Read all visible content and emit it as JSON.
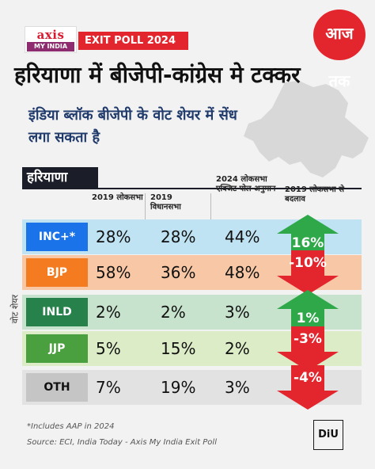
{
  "brand": {
    "axis_line1": "axis",
    "axis_line2": "MY INDIA",
    "exit_tag": "EXIT POLL 2024",
    "channel_logo": "आज तक",
    "footer_logo": "DiU"
  },
  "headline": "हरियाणा में बीजेपी-कांग्रेस मे टक्कर",
  "subheadline": "इंडिया ब्लॉक बीजेपी के वोट शेयर में सेंध लगा सकता है",
  "chart_data": {
    "type": "table",
    "title": "हरियाणा",
    "row_axis_label": "वोट शेयर",
    "columns": [
      "2019 लोकसभा",
      "2019 विधानसभा",
      "2024 लोकसभा एक्जिट पोल अनुमान",
      "2019 लोकसभा से बदलाव"
    ],
    "rows": [
      {
        "party": "INC+*",
        "color": "#1a73e8",
        "bg": "#bfe3f2",
        "ls2019": "28%",
        "vs2019": "28%",
        "exit2024": "44%",
        "change": "16%",
        "change_value": 16
      },
      {
        "party": "BJP",
        "color": "#f47b20",
        "bg": "#f8c8a6",
        "ls2019": "58%",
        "vs2019": "36%",
        "exit2024": "48%",
        "change": "-10%",
        "change_value": -10
      },
      {
        "party": "INLD",
        "color": "#26814b",
        "bg": "#c7e3cd",
        "ls2019": "2%",
        "vs2019": "2%",
        "exit2024": "3%",
        "change": "1%",
        "change_value": 1
      },
      {
        "party": "JJP",
        "color": "#4aa03f",
        "bg": "#dcecc7",
        "ls2019": "5%",
        "vs2019": "15%",
        "exit2024": "2%",
        "change": "-3%",
        "change_value": -3
      },
      {
        "party": "OTH",
        "color": "#c5c5c5",
        "text_color": "#111111",
        "bg": "#e2e2e2",
        "ls2019": "7%",
        "vs2019": "19%",
        "exit2024": "3%",
        "change": "-4%",
        "change_value": -4
      }
    ],
    "arrow_colors": {
      "up": "#2fa84a",
      "down": "#e3262e"
    }
  },
  "footnote": "*Includes AAP in 2024",
  "source": "Source: ECI, India Today - Axis My India Exit Poll"
}
